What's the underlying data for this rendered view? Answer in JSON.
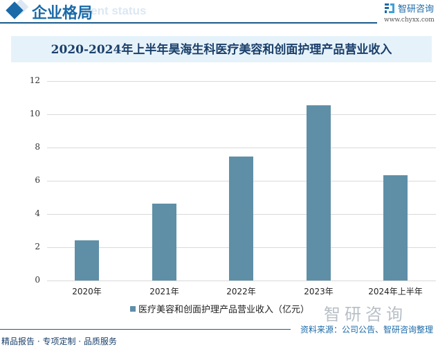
{
  "header": {
    "section_title": "企业格局",
    "ghost_text": "ment status",
    "brand_name": "智研咨询",
    "brand_url": "www.chyxx.com"
  },
  "chart_data": {
    "type": "bar",
    "title": "2020-2024年上半年昊海生科医疗美容和创面护理产品营业收入",
    "categories": [
      "2020年",
      "2021年",
      "2022年",
      "2023年",
      "2024年上半年"
    ],
    "series": [
      {
        "name": "医疗美容和创面护理产品营业收入（亿元）",
        "values": [
          2.42,
          4.62,
          7.46,
          10.54,
          6.33
        ]
      }
    ],
    "xlabel": "",
    "ylabel": "",
    "ylim": [
      0,
      12
    ],
    "yticks": [
      "0",
      "2",
      "4",
      "6",
      "8",
      "10",
      "12"
    ],
    "grid": true,
    "legend_position": "bottom",
    "color": "#5e8fa7"
  },
  "watermark_brand": "智研咨询",
  "source": "资料来源：公司公告、智研咨询整理",
  "footer": "精品报告 · 专项定制 · 品质服务"
}
